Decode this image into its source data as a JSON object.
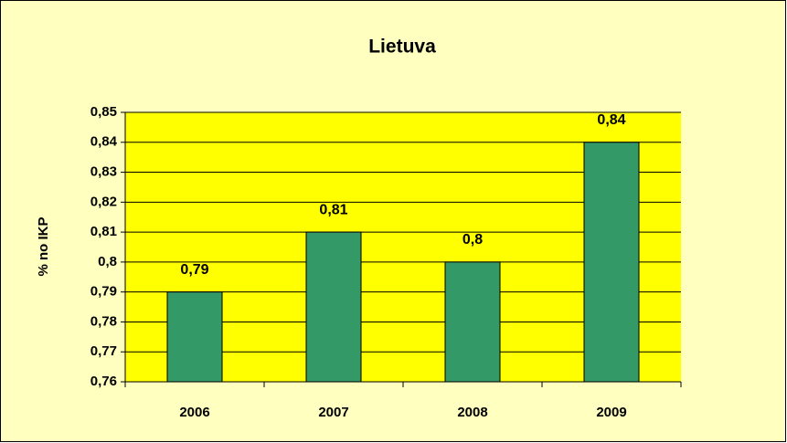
{
  "chart_data": {
    "type": "bar",
    "title": "Lietuva",
    "y_label": "% no IKP",
    "categories": [
      "2006",
      "2007",
      "2008",
      "2009"
    ],
    "values": [
      0.79,
      0.81,
      0.8,
      0.84
    ],
    "value_labels": [
      "0,79",
      "0,81",
      "0,8",
      "0,84"
    ],
    "color": "#339966",
    "ylim": [
      0.76,
      0.85
    ],
    "yticks": [
      {
        "value": 0.76,
        "label": "0,76"
      },
      {
        "value": 0.77,
        "label": "0,77"
      },
      {
        "value": 0.78,
        "label": "0,78"
      },
      {
        "value": 0.79,
        "label": "0,79"
      },
      {
        "value": 0.8,
        "label": "0,8"
      },
      {
        "value": 0.81,
        "label": "0,81"
      },
      {
        "value": 0.82,
        "label": "0,82"
      },
      {
        "value": 0.83,
        "label": "0,83"
      },
      {
        "value": 0.84,
        "label": "0,84"
      },
      {
        "value": 0.85,
        "label": "0,85"
      }
    ],
    "grid": true
  }
}
